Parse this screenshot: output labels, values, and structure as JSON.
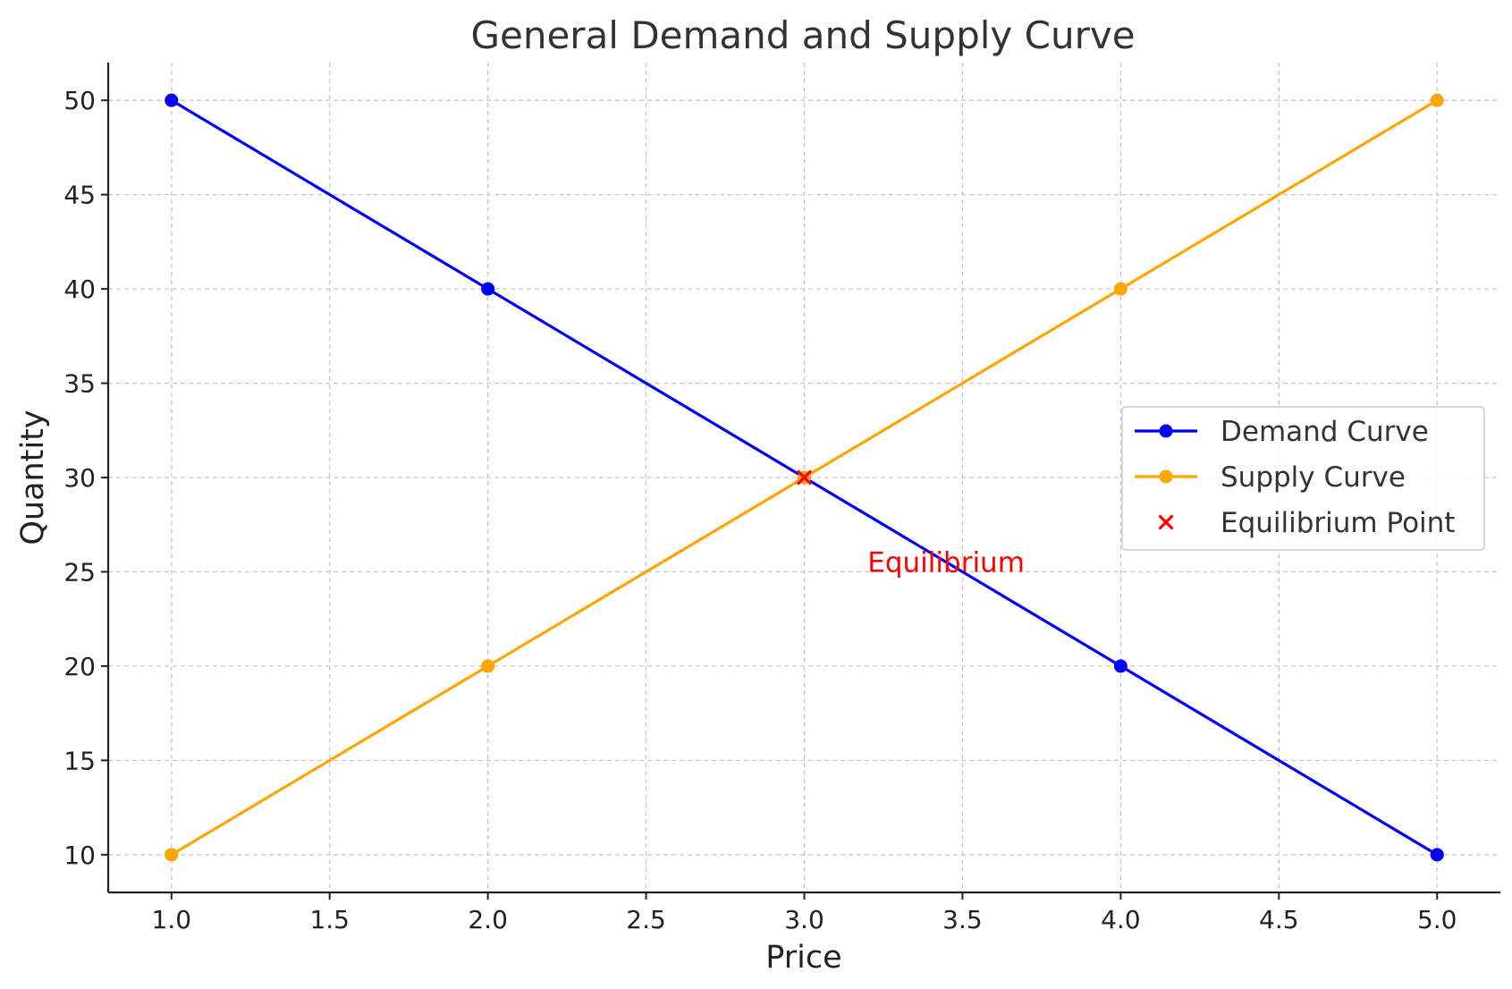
{
  "chart_data": {
    "type": "line",
    "title": "General Demand and Supply Curve",
    "xlabel": "Price",
    "ylabel": "Quantity",
    "xlim": [
      0.8,
      5.2
    ],
    "ylim": [
      8,
      52
    ],
    "xticks": [
      1.0,
      1.5,
      2.0,
      2.5,
      3.0,
      3.5,
      4.0,
      4.5,
      5.0
    ],
    "xtick_labels": [
      "1.0",
      "1.5",
      "2.0",
      "2.5",
      "3.0",
      "3.5",
      "4.0",
      "4.5",
      "5.0"
    ],
    "yticks": [
      10,
      15,
      20,
      25,
      30,
      35,
      40,
      45,
      50
    ],
    "ytick_labels": [
      "10",
      "15",
      "20",
      "25",
      "30",
      "35",
      "40",
      "45",
      "50"
    ],
    "grid": true,
    "legend_position": "center-right",
    "series": [
      {
        "name": "Demand Curve",
        "color": "#0000ff",
        "marker": "circle",
        "x": [
          1,
          2,
          3,
          4,
          5
        ],
        "y": [
          50,
          40,
          30,
          20,
          10
        ]
      },
      {
        "name": "Supply Curve",
        "color": "#ffa500",
        "marker": "circle",
        "x": [
          1,
          2,
          3,
          4,
          5
        ],
        "y": [
          10,
          20,
          30,
          40,
          50
        ]
      }
    ],
    "points": [
      {
        "name": "Equilibrium Point",
        "color": "#ff0000",
        "marker": "x",
        "x": 3,
        "y": 30
      }
    ],
    "annotations": [
      {
        "text": "Equilibrium",
        "x": 3.2,
        "y": 25,
        "color": "#ff0000"
      }
    ]
  }
}
